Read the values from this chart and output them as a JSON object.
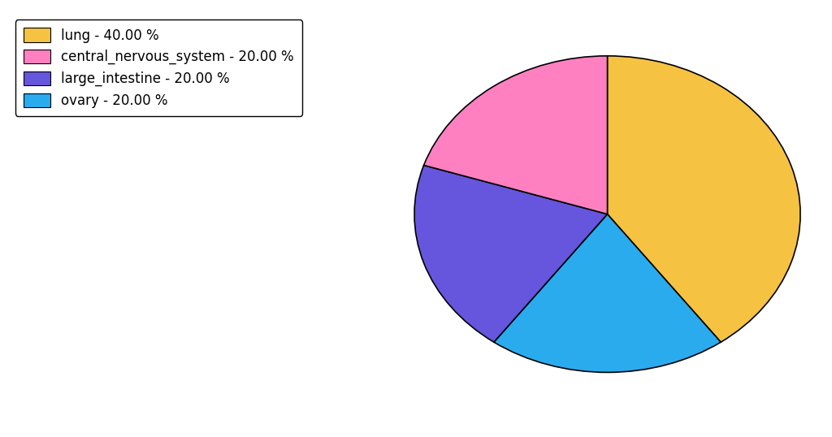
{
  "labels": [
    "lung",
    "ovary",
    "large_intestine",
    "central_nervous_system"
  ],
  "values": [
    40.0,
    20.0,
    20.0,
    20.0
  ],
  "colors": [
    "#F5C242",
    "#2AABEE",
    "#6655DD",
    "#FF80C0"
  ],
  "legend_labels": [
    "lung - 40.00 %",
    "central_nervous_system - 20.00 %",
    "large_intestine - 20.00 %",
    "ovary - 20.00 %"
  ],
  "legend_colors": [
    "#F5C242",
    "#FF80C0",
    "#6655DD",
    "#2AABEE"
  ],
  "background_color": "#ffffff",
  "startangle": 90,
  "figsize": [
    10.24,
    5.38
  ],
  "dpi": 100,
  "legend_fontsize": 12
}
